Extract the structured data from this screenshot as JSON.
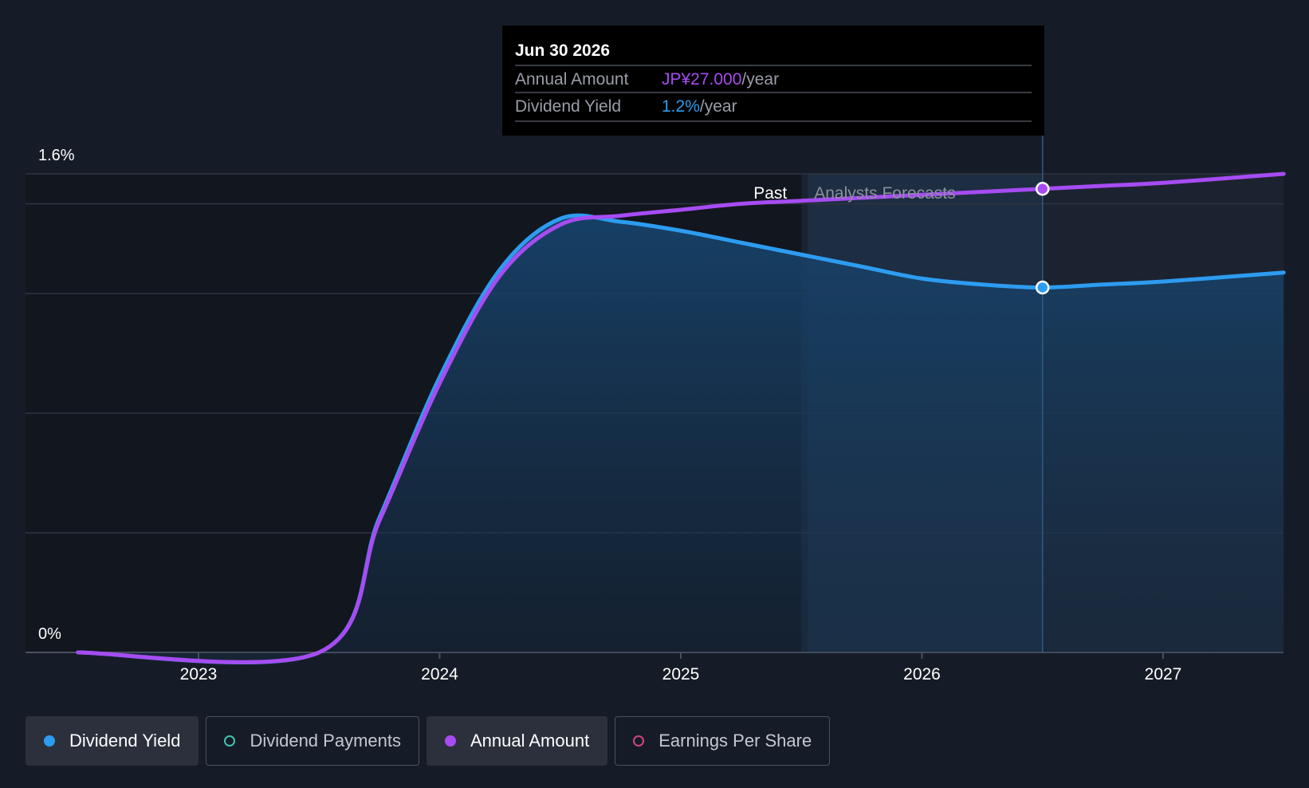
{
  "chart_data": {
    "type": "line",
    "y_axis": {
      "min_label": "0%",
      "max_label": "1.6%",
      "ylim": [
        0,
        1.6
      ]
    },
    "x_ticks": [
      "2023",
      "2024",
      "2025",
      "2026",
      "2027"
    ],
    "regions": {
      "past_label": "Past",
      "forecast_label": "Analysts Forecasts"
    },
    "series": [
      {
        "name": "Dividend Yield",
        "color": "#2d9cf0",
        "points": [
          [
            "2022-07",
            0
          ],
          [
            "2023-07",
            0
          ],
          [
            "2023-10",
            0.45
          ],
          [
            "2024-01",
            0.92
          ],
          [
            "2024-04",
            1.28
          ],
          [
            "2024-07",
            1.45
          ],
          [
            "2024-10",
            1.44
          ],
          [
            "2025-01",
            1.41
          ],
          [
            "2025-04",
            1.37
          ],
          [
            "2025-07",
            1.33
          ],
          [
            "2025-10",
            1.29
          ],
          [
            "2026-01",
            1.25
          ],
          [
            "2026-04",
            1.23
          ],
          [
            "2026-07",
            1.22
          ],
          [
            "2026-10",
            1.23
          ],
          [
            "2027-01",
            1.24
          ],
          [
            "2027-07",
            1.27
          ]
        ]
      },
      {
        "name": "Annual Amount",
        "color": "#a64cf2",
        "points": [
          [
            "2022-07",
            0
          ],
          [
            "2023-07",
            0
          ],
          [
            "2023-10",
            0.44
          ],
          [
            "2024-01",
            0.9
          ],
          [
            "2024-04",
            1.26
          ],
          [
            "2024-07",
            1.43
          ],
          [
            "2024-10",
            1.46
          ],
          [
            "2025-01",
            1.48
          ],
          [
            "2025-04",
            1.5
          ],
          [
            "2025-07",
            1.51
          ],
          [
            "2025-10",
            1.52
          ],
          [
            "2026-01",
            1.53
          ],
          [
            "2026-04",
            1.54
          ],
          [
            "2026-07",
            1.55
          ],
          [
            "2026-10",
            1.56
          ],
          [
            "2027-01",
            1.57
          ],
          [
            "2027-07",
            1.6
          ]
        ]
      }
    ],
    "tooltip": {
      "date": "Jun 30 2026",
      "rows": [
        {
          "label": "Annual Amount",
          "value": "JP¥27.000",
          "unit": "/year",
          "color": "#a64cf2"
        },
        {
          "label": "Dividend Yield",
          "value": "1.2%",
          "unit": "/year",
          "color": "#2d9cf0"
        }
      ]
    },
    "legend": [
      {
        "label": "Dividend Yield",
        "color": "#2d9cf0",
        "filled": true,
        "active": true
      },
      {
        "label": "Dividend Payments",
        "color": "#3fc2b0",
        "filled": false,
        "active": false
      },
      {
        "label": "Annual Amount",
        "color": "#a64cf2",
        "filled": true,
        "active": true
      },
      {
        "label": "Earnings Per Share",
        "color": "#d1457a",
        "filled": false,
        "active": false
      }
    ]
  }
}
